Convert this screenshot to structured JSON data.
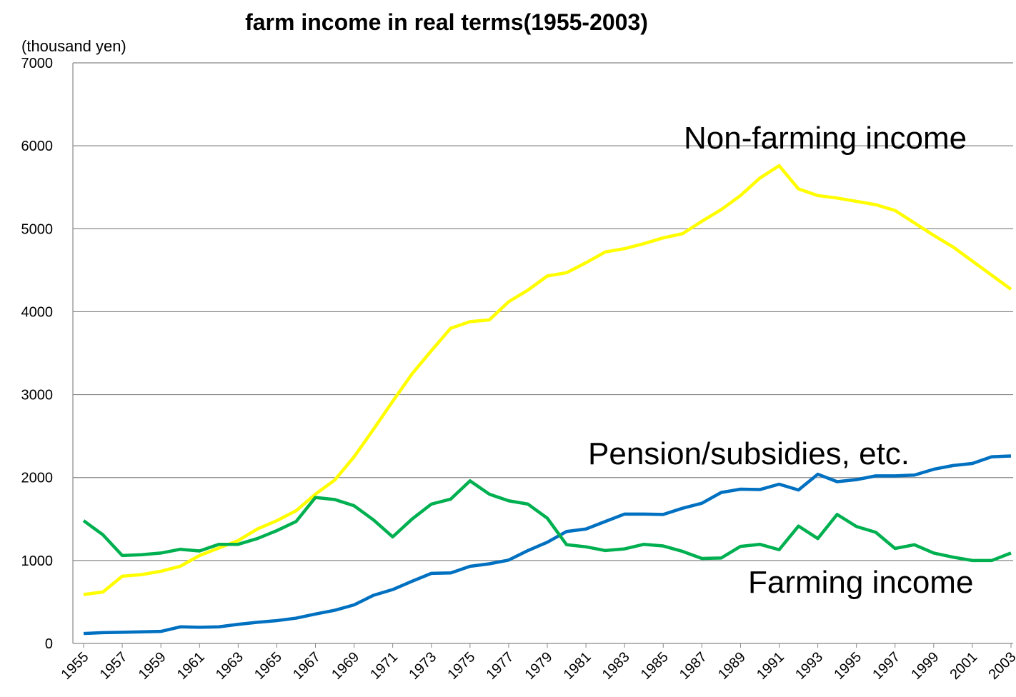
{
  "chart_data": {
    "type": "line",
    "title": "farm income in real terms(1955-2003)",
    "y_label": "(thousand yen)",
    "x": [
      1955,
      1956,
      1957,
      1958,
      1959,
      1960,
      1961,
      1962,
      1963,
      1964,
      1965,
      1966,
      1967,
      1968,
      1969,
      1970,
      1971,
      1972,
      1973,
      1974,
      1975,
      1976,
      1977,
      1978,
      1979,
      1980,
      1981,
      1982,
      1983,
      1984,
      1985,
      1986,
      1987,
      1988,
      1989,
      1990,
      1991,
      1992,
      1993,
      1994,
      1995,
      1996,
      1997,
      1998,
      1999,
      2000,
      2001,
      2002,
      2003
    ],
    "xlim": [
      1955,
      2003
    ],
    "xticks": [
      1955,
      1957,
      1959,
      1961,
      1963,
      1965,
      1967,
      1969,
      1971,
      1973,
      1975,
      1977,
      1979,
      1981,
      1983,
      1985,
      1987,
      1989,
      1991,
      1993,
      1995,
      1997,
      1999,
      2001,
      2003
    ],
    "ylim": [
      0,
      7000
    ],
    "yticks": [
      0,
      1000,
      2000,
      3000,
      4000,
      5000,
      6000,
      7000
    ],
    "grid": true,
    "series": [
      {
        "name": "Non-farming income",
        "color": "#ffff00",
        "values": [
          590,
          620,
          810,
          830,
          870,
          930,
          1060,
          1150,
          1240,
          1380,
          1480,
          1600,
          1800,
          1970,
          2250,
          2580,
          2920,
          3250,
          3530,
          3800,
          3880,
          3900,
          4120,
          4260,
          4430,
          4470,
          4590,
          4720,
          4760,
          4820,
          4890,
          4940,
          5090,
          5230,
          5400,
          5610,
          5760,
          5480,
          5400,
          5370,
          5330,
          5290,
          5220,
          5070,
          4920,
          4780,
          4610,
          4440,
          4270
        ]
      },
      {
        "name": "Pension/subsidies, etc.",
        "color": "#0070c0",
        "values": [
          120,
          130,
          135,
          140,
          145,
          200,
          195,
          200,
          230,
          255,
          275,
          305,
          355,
          400,
          465,
          580,
          650,
          750,
          845,
          850,
          930,
          960,
          1005,
          1120,
          1220,
          1350,
          1380,
          1470,
          1560,
          1560,
          1555,
          1630,
          1690,
          1820,
          1860,
          1855,
          1920,
          1850,
          2040,
          1950,
          1975,
          2020,
          2020,
          2030,
          2100,
          2145,
          2170,
          2250,
          2260
        ]
      },
      {
        "name": "Farming income",
        "color": "#00b050",
        "values": [
          1480,
          1310,
          1060,
          1070,
          1090,
          1135,
          1115,
          1195,
          1195,
          1265,
          1360,
          1470,
          1760,
          1735,
          1660,
          1490,
          1285,
          1500,
          1680,
          1740,
          1960,
          1800,
          1720,
          1680,
          1510,
          1190,
          1165,
          1120,
          1140,
          1195,
          1175,
          1110,
          1025,
          1030,
          1170,
          1195,
          1130,
          1415,
          1265,
          1555,
          1410,
          1340,
          1145,
          1190,
          1090,
          1040,
          1000,
          1000,
          1090
        ]
      }
    ]
  }
}
